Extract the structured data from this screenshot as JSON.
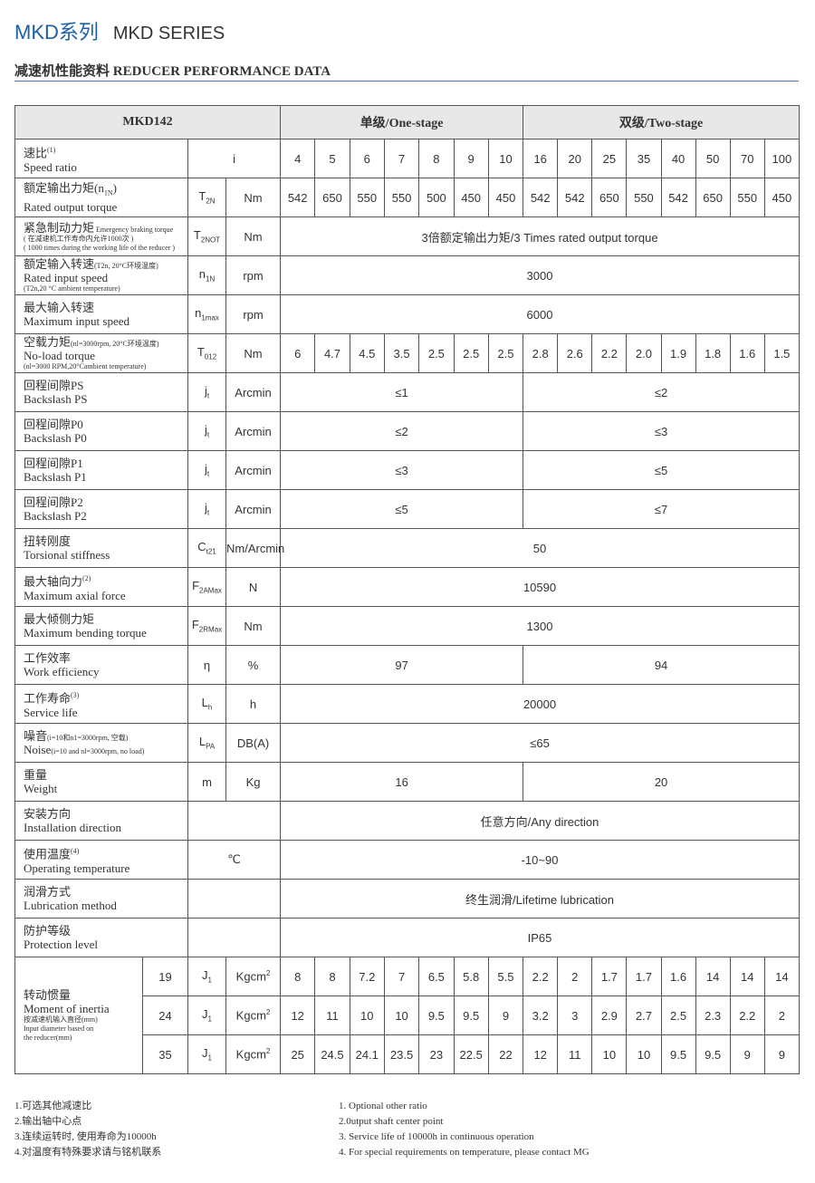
{
  "header": {
    "title_zh": "MKD系列",
    "title_en": "MKD SERIES",
    "subtitle": "减速机性能资料 REDUCER PERFORMANCE DATA"
  },
  "table": {
    "model": "MKD142",
    "stage1": "单级/One-stage",
    "stage2": "双级/Two-stage",
    "rows": [
      {
        "zh": "速比",
        "sup": "(1)",
        "en": "Speed ratio",
        "sym": "i",
        "sub": "",
        "unit": "",
        "symspan": true,
        "values": [
          "4",
          "5",
          "6",
          "7",
          "8",
          "9",
          "10",
          "16",
          "20",
          "25",
          "35",
          "40",
          "50",
          "70",
          "100"
        ]
      },
      {
        "zh": "额定输出力矩(n",
        "zhsub": "1N",
        "zhtail": ")",
        "en": "Rated output torque",
        "sym": "T",
        "sub": "2N",
        "unit": "Nm",
        "values": [
          "542",
          "650",
          "550",
          "550",
          "500",
          "450",
          "450",
          "542",
          "542",
          "650",
          "550",
          "542",
          "650",
          "550",
          "450"
        ]
      },
      {
        "zh": "紧急制动力矩",
        "zhnote": " Emergency braking torque",
        "note1": "( 在减速机工作寿命内允许1000次 )",
        "note2": "( 1000 times during the working life of the reducer )",
        "sym": "T",
        "sub": "2NOT",
        "unit": "Nm",
        "all": "3倍额定输出力矩/3 Times rated output torque"
      },
      {
        "zh": "额定输入转速",
        "zhnote": "(T2n, 20°C环境温度)",
        "en": "Rated input speed",
        "note2": "(T2n,20 °C ambient temperature)",
        "sym": "n",
        "sub": "1N",
        "unit": "rpm",
        "all": "3000"
      },
      {
        "zh": "最大输入转速",
        "en": "Maximum input speed",
        "sym": "n",
        "sub": "1max",
        "unit": "rpm",
        "all": "6000"
      },
      {
        "zh": "空载力矩",
        "zhnote": "(nl=3000rpm, 20°C环境温度)",
        "en": "No-load torque",
        "note2": "(nl=3000 RPM,20°Cambient temperature)",
        "sym": "T",
        "sub": "012",
        "unit": "Nm",
        "values": [
          "6",
          "4.7",
          "4.5",
          "3.5",
          "2.5",
          "2.5",
          "2.5",
          "2.8",
          "2.6",
          "2.2",
          "2.0",
          "1.9",
          "1.8",
          "1.6",
          "1.5"
        ]
      },
      {
        "zh": "回程间隙PS",
        "en": "Backslash PS",
        "sym": "j",
        "sub": "t",
        "unit": "Arcmin",
        "s1": "≤1",
        "s2": "≤2"
      },
      {
        "zh": "回程间隙P0",
        "en": "Backslash P0",
        "sym": "j",
        "sub": "t",
        "unit": "Arcmin",
        "s1": "≤2",
        "s2": "≤3"
      },
      {
        "zh": "回程间隙P1",
        "en": "Backslash P1",
        "sym": "j",
        "sub": "t",
        "unit": "Arcmin",
        "s1": "≤3",
        "s2": "≤5"
      },
      {
        "zh": "回程间隙P2",
        "en": "Backslash P2",
        "sym": "j",
        "sub": "t",
        "unit": "Arcmin",
        "s1": "≤5",
        "s2": "≤7"
      },
      {
        "zh": "扭转刚度",
        "en": "Torsional stiffness",
        "sym": "C",
        "sub": "t21",
        "unit": "Nm/Arcmin",
        "all": "50"
      },
      {
        "zh": "最大轴向力",
        "sup": "(2)",
        "en": "Maximum axial force",
        "sym": "F",
        "sub": "2AMax",
        "unit": "N",
        "all": "10590"
      },
      {
        "zh": "最大倾侧力矩",
        "en": "Maximum bending torque",
        "sym": "F",
        "sub": "2RMax",
        "unit": "Nm",
        "all": "1300"
      },
      {
        "zh": "工作效率",
        "en": "Work efficiency",
        "sym": "η",
        "sub": "",
        "unit": "%",
        "s1": "97",
        "s2": "94"
      },
      {
        "zh": "工作寿命",
        "sup": "(3)",
        "en": "Service life",
        "sym": "L",
        "sub": "h",
        "unit": "h",
        "all": "20000"
      },
      {
        "zh": "噪音",
        "zhnote": "(i=10和n1=3000rpm, 空载)",
        "en": "Noise",
        "ennote": "(i=10 and nl=3000rpm, no load)",
        "sym": "L",
        "sub": "PA",
        "unit": "DB(A)",
        "all": "≤65"
      },
      {
        "zh": "重量",
        "en": "Weight",
        "sym": "m",
        "sub": "",
        "unit": "Kg",
        "s1": "16",
        "s2": "20"
      },
      {
        "zh": "安装方向",
        "en": "Installation direction",
        "sym": "",
        "sub": "",
        "unit": "",
        "symspan": true,
        "all": "任意方向/Any direction"
      },
      {
        "zh": "使用温度",
        "sup": "(4)",
        "en": "Operating temperature",
        "sym": "℃",
        "sub": "",
        "unit": "",
        "symspan": true,
        "all": "-10~90"
      },
      {
        "zh": "润滑方式",
        "en": "Lubrication method",
        "sym": "",
        "sub": "",
        "unit": "",
        "symspan": true,
        "all": "终生润滑/Lifetime lubrication"
      },
      {
        "zh": "防护等级",
        "en": "Protection level",
        "sym": "",
        "sub": "",
        "unit": "",
        "symspan": true,
        "all": "IP65"
      }
    ],
    "inertia": {
      "zh": "转动惯量",
      "en": "Moment of inertia",
      "note1": "按减速机输入直径(mm)",
      "note2": "Input diameter based on",
      "note3": "the reducer(mm)",
      "sym": "J",
      "sub": "1",
      "unit": "Kgcm",
      "unit_sup": "2",
      "rows": [
        {
          "d": "19",
          "values": [
            "8",
            "8",
            "7.2",
            "7",
            "6.5",
            "5.8",
            "5.5",
            "2.2",
            "2",
            "1.7",
            "1.7",
            "1.6",
            "14",
            "14",
            "14"
          ]
        },
        {
          "d": "24",
          "values": [
            "12",
            "11",
            "10",
            "10",
            "9.5",
            "9.5",
            "9",
            "3.2",
            "3",
            "2.9",
            "2.7",
            "2.5",
            "2.3",
            "2.2",
            "2"
          ]
        },
        {
          "d": "35",
          "values": [
            "25",
            "24.5",
            "24.1",
            "23.5",
            "23",
            "22.5",
            "22",
            "12",
            "11",
            "10",
            "10",
            "9.5",
            "9.5",
            "9",
            "9"
          ]
        }
      ]
    }
  },
  "footnotes": {
    "zh": [
      "1.可选其他减速比",
      "2.输出轴中心点",
      "3.连续运转时, 使用寿命为10000h",
      "4.对温度有特殊要求请与铭机联系"
    ],
    "en": [
      "1. Optional other ratio",
      "2.0utput shaft center point",
      "3. Service life of 10000h in continuous operation",
      "4. For special requirements on temperature, please contact MG"
    ]
  }
}
